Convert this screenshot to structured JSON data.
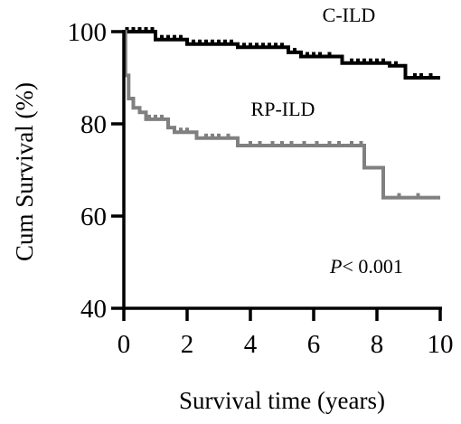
{
  "chart_data": {
    "type": "line",
    "chart_style": "kaplan-meier step curves with censoring ticks",
    "xlabel": "Survival time (years)",
    "ylabel": "Cum Survival (%)",
    "xlim": [
      0,
      10
    ],
    "ylim": [
      40,
      100
    ],
    "x_ticks": [
      0,
      2,
      4,
      6,
      8,
      10
    ],
    "y_ticks": [
      40,
      60,
      80,
      100
    ],
    "grid": false,
    "annotation": {
      "p_symbol": "P",
      "p_rest": "< 0.001"
    },
    "series": [
      {
        "name": "C-ILD",
        "color": "#000000",
        "steps": [
          [
            0,
            100
          ],
          [
            1.0,
            98.3
          ],
          [
            2.0,
            97.3
          ],
          [
            3.6,
            96.6
          ],
          [
            5.2,
            95.5
          ],
          [
            5.6,
            94.6
          ],
          [
            6.9,
            93.2
          ],
          [
            8.4,
            92.6
          ],
          [
            8.9,
            90.0
          ],
          [
            10,
            90.0
          ]
        ],
        "censor_x": [
          0.1,
          0.3,
          0.5,
          0.7,
          0.9,
          1.2,
          1.4,
          1.6,
          1.8,
          2.2,
          2.4,
          2.6,
          2.8,
          3.0,
          3.2,
          3.4,
          3.8,
          4.0,
          4.2,
          4.4,
          4.6,
          4.8,
          5.0,
          5.4,
          5.8,
          6.0,
          6.2,
          6.5,
          7.2,
          7.4,
          7.6,
          7.8,
          8.0,
          8.2,
          8.6,
          9.2,
          9.4,
          9.7
        ]
      },
      {
        "name": "RP-ILD",
        "color": "#808080",
        "steps": [
          [
            0,
            100
          ],
          [
            0.05,
            90.5
          ],
          [
            0.15,
            85.5
          ],
          [
            0.3,
            83.5
          ],
          [
            0.5,
            82.5
          ],
          [
            0.7,
            81.0
          ],
          [
            1.4,
            79.2
          ],
          [
            1.6,
            78.2
          ],
          [
            2.3,
            76.9
          ],
          [
            3.6,
            75.3
          ],
          [
            7.6,
            70.5
          ],
          [
            8.2,
            64.0
          ],
          [
            10,
            64.0
          ]
        ],
        "censor_x": [
          0.8,
          1.0,
          1.2,
          1.8,
          2.0,
          2.6,
          2.8,
          3.0,
          3.3,
          4.0,
          4.3,
          4.7,
          5.0,
          5.3,
          5.7,
          6.1,
          6.5,
          6.8,
          7.2,
          7.5,
          8.7,
          9.3
        ]
      }
    ]
  }
}
